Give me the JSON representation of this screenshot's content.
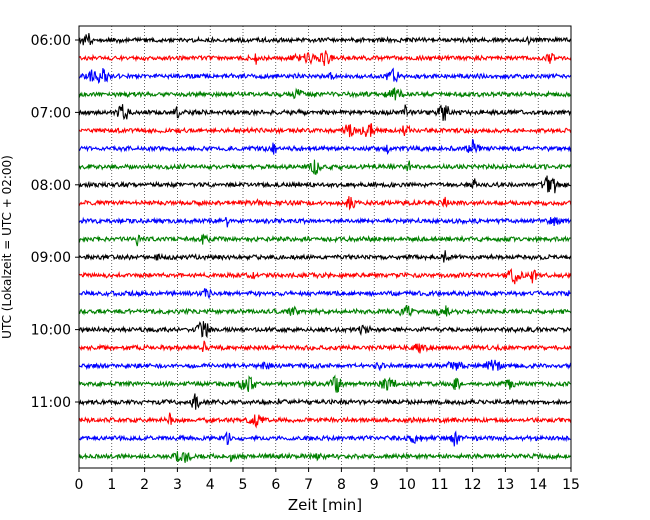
{
  "chart_data": {
    "type": "line",
    "title": "",
    "xlabel": "Zeit  [min]",
    "ylabel": "UTC (Lokalzeit = UTC + 02:00)",
    "xlim": [
      0,
      15
    ],
    "x_ticks": [
      "0",
      "1",
      "2",
      "3",
      "4",
      "5",
      "6",
      "7",
      "8",
      "9",
      "10",
      "11",
      "12",
      "13",
      "14",
      "15"
    ],
    "y_tick_labels": [
      "06:00",
      "07:00",
      "08:00",
      "09:00",
      "10:00",
      "11:00"
    ],
    "grid": true,
    "trace_interval_min": 15,
    "series_colors": [
      "#000000",
      "#ff0000",
      "#0000ff",
      "#008000"
    ],
    "traces": [
      {
        "start": "06:00",
        "color": "#000000"
      },
      {
        "start": "06:15",
        "color": "#ff0000"
      },
      {
        "start": "06:30",
        "color": "#0000ff"
      },
      {
        "start": "06:45",
        "color": "#008000"
      },
      {
        "start": "07:00",
        "color": "#000000"
      },
      {
        "start": "07:15",
        "color": "#ff0000"
      },
      {
        "start": "07:30",
        "color": "#0000ff"
      },
      {
        "start": "07:45",
        "color": "#008000"
      },
      {
        "start": "08:00",
        "color": "#000000"
      },
      {
        "start": "08:15",
        "color": "#ff0000"
      },
      {
        "start": "08:30",
        "color": "#0000ff"
      },
      {
        "start": "08:45",
        "color": "#008000"
      },
      {
        "start": "09:00",
        "color": "#000000"
      },
      {
        "start": "09:15",
        "color": "#ff0000"
      },
      {
        "start": "09:30",
        "color": "#0000ff"
      },
      {
        "start": "09:45",
        "color": "#008000"
      },
      {
        "start": "10:00",
        "color": "#000000"
      },
      {
        "start": "10:15",
        "color": "#ff0000"
      },
      {
        "start": "10:30",
        "color": "#0000ff"
      },
      {
        "start": "10:45",
        "color": "#008000"
      },
      {
        "start": "11:00",
        "color": "#000000"
      },
      {
        "start": "11:15",
        "color": "#ff0000"
      },
      {
        "start": "11:30",
        "color": "#0000ff"
      },
      {
        "start": "11:45",
        "color": "#008000"
      }
    ]
  }
}
